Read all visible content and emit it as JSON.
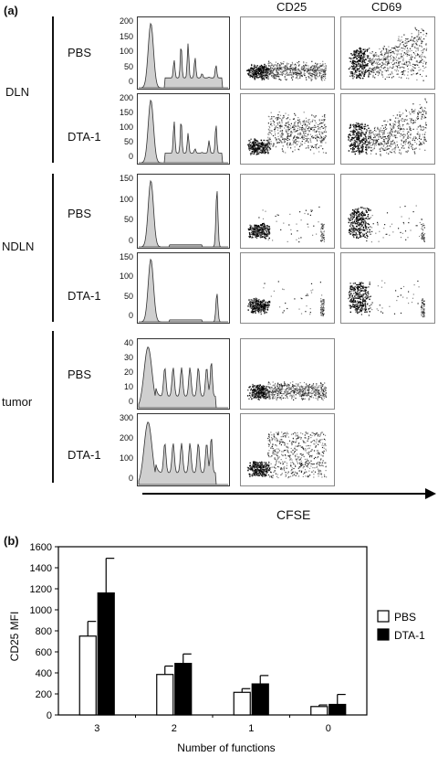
{
  "figure": {
    "panel_a_label": "(a)",
    "panel_b_label": "(b)",
    "col_header_cd25": "CD25",
    "col_header_cd69": "CD69",
    "cfse_label": "CFSE",
    "groups": [
      {
        "name": "DLN",
        "rows": [
          "PBS",
          "DTA-1"
        ]
      },
      {
        "name": "NDLN",
        "rows": [
          "PBS",
          "DTA-1"
        ]
      },
      {
        "name": "tumor",
        "rows": [
          "PBS",
          "DTA-1"
        ]
      }
    ],
    "hist_yticks": [
      [
        "200",
        "150",
        "100",
        "50",
        "0"
      ],
      [
        "200",
        "150",
        "100",
        "50",
        "0"
      ],
      [
        "150",
        "100",
        "50",
        "0"
      ],
      [
        "150",
        "100",
        "50",
        "0"
      ],
      [
        "40",
        "30",
        "20",
        "10",
        "0"
      ],
      [
        "300",
        "200",
        "100",
        "0"
      ]
    ]
  },
  "chart_data": {
    "type": "bar",
    "title": "",
    "xlabel": "Number of functions",
    "ylabel": "CD25 MFI",
    "categories": [
      "3",
      "2",
      "1",
      "0"
    ],
    "ylim": [
      0,
      1600
    ],
    "yticks": [
      0,
      200,
      400,
      600,
      800,
      1000,
      1200,
      1400,
      1600
    ],
    "series": [
      {
        "name": "PBS",
        "values": [
          750,
          385,
          215,
          80
        ],
        "errors": [
          140,
          80,
          35,
          15
        ],
        "color": "#ffffff"
      },
      {
        "name": "DTA-1",
        "values": [
          1160,
          490,
          295,
          100
        ],
        "errors": [
          330,
          90,
          80,
          95
        ],
        "color": "#000000"
      }
    ],
    "legend_position": "right"
  }
}
